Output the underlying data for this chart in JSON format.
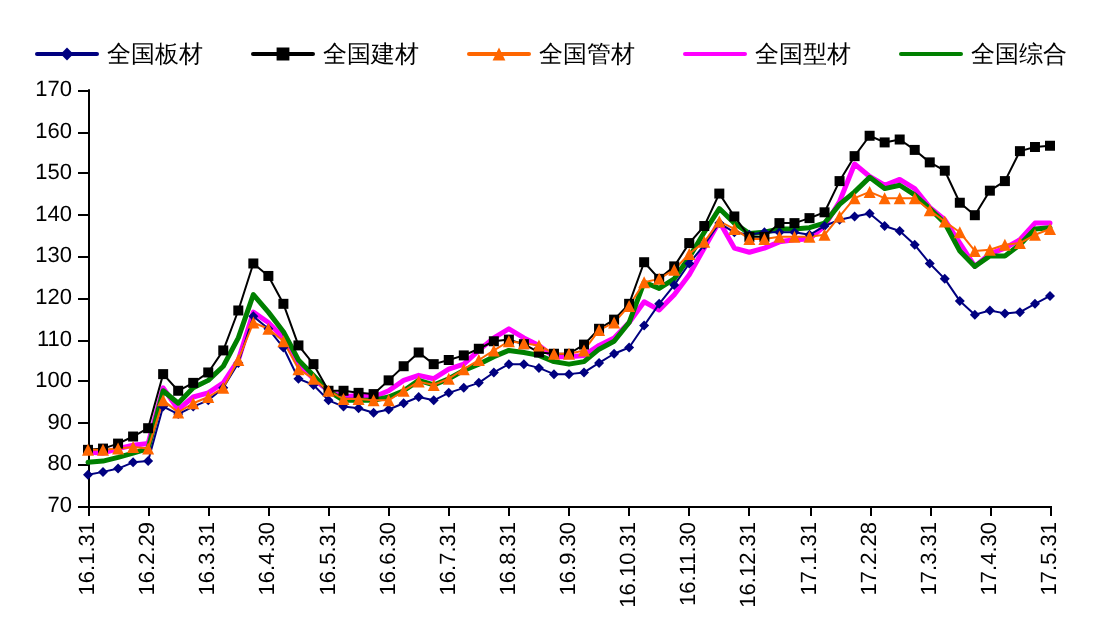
{
  "chart_data": {
    "type": "line",
    "categories": [
      "16.1.31",
      null,
      null,
      null,
      "16.2.29",
      null,
      null,
      null,
      "16.3.31",
      null,
      null,
      null,
      "16.4.30",
      null,
      null,
      null,
      "16.5.31",
      null,
      null,
      null,
      "16.6.30",
      null,
      null,
      null,
      "16.7.31",
      null,
      null,
      null,
      "16.8.31",
      null,
      null,
      null,
      "16.9.30",
      null,
      null,
      null,
      "16.10.31",
      null,
      null,
      null,
      "16.11.30",
      null,
      null,
      null,
      "16.12.31",
      null,
      null,
      null,
      "17.1.31",
      null,
      null,
      null,
      "17.2.28",
      null,
      null,
      null,
      "17.3.31",
      null,
      null,
      null,
      "17.4.30",
      null,
      null,
      null,
      "17.5.31"
    ],
    "series": [
      {
        "name": "全国板材",
        "color": "#000080",
        "marker": "diamond",
        "values": [
          77.5,
          78.2,
          79,
          80.5,
          80.8,
          93.9,
          92.1,
          93.9,
          95.4,
          98.4,
          104.4,
          115.6,
          112.6,
          108.1,
          100.6,
          99.1,
          95.4,
          93.9,
          93.5,
          92.4,
          93.2,
          94.7,
          96.2,
          95.4,
          97.2,
          98.4,
          99.6,
          102.1,
          104.1,
          104.1,
          103.2,
          101.7,
          101.7,
          102.1,
          104.4,
          106.6,
          108.1,
          113.4,
          118.6,
          123.1,
          128.3,
          132.8,
          138,
          135.8,
          135.2,
          135.8,
          135.8,
          135.8,
          135.2,
          137.3,
          138.8,
          139.6,
          140.3,
          137.3,
          136.1,
          132.8,
          128.3,
          124.6,
          119.3,
          116,
          117,
          116.3,
          116.6,
          118.6,
          120.5
        ]
      },
      {
        "name": "全国建材",
        "color": "#000000",
        "marker": "square",
        "values": [
          83.5,
          83.8,
          85,
          86.7,
          88.7,
          101.7,
          97.7,
          99.6,
          102.1,
          107.4,
          117,
          128.3,
          125.3,
          118.6,
          108.6,
          104.1,
          97.7,
          97.7,
          97.2,
          96.9,
          100.2,
          103.6,
          106.9,
          104.1,
          105.1,
          106.2,
          107.8,
          109.6,
          110,
          108.9,
          106.9,
          106.6,
          106.6,
          108.8,
          112.6,
          114.8,
          118.6,
          128.6,
          124.6,
          127.6,
          133.2,
          137.3,
          145.1,
          139.6,
          134.7,
          134.7,
          138,
          138,
          139.2,
          140.6,
          148.1,
          154.1,
          159,
          157.4,
          158.1,
          155.6,
          152.6,
          150.6,
          142.9,
          139.9,
          145.8,
          148.1,
          155.3,
          156.3,
          156.6
        ]
      },
      {
        "name": "全国管材",
        "color": "#ff6600",
        "marker": "triangle",
        "values": [
          83.5,
          83.5,
          83.8,
          84.2,
          83.8,
          95.4,
          92.5,
          94.7,
          96.2,
          98.4,
          105.1,
          114.1,
          112.6,
          109.6,
          102.9,
          100.6,
          97.7,
          95.7,
          95.7,
          95.4,
          95.4,
          97.7,
          99.9,
          99.1,
          100.6,
          102.9,
          105.1,
          107.4,
          109.6,
          109.1,
          108.6,
          106.6,
          106.6,
          107.4,
          112.3,
          114.1,
          118.1,
          123.8,
          124.6,
          126.8,
          130.6,
          133.5,
          138.4,
          136.6,
          134.2,
          134.2,
          134.7,
          134.7,
          134.7,
          135.2,
          139.6,
          144,
          145.5,
          144,
          144,
          144,
          141.1,
          138.4,
          135.8,
          131.3,
          131.6,
          132.8,
          133.2,
          135.2,
          136.6
        ]
      },
      {
        "name": "全国型材",
        "color": "#ff00ff",
        "marker": "none",
        "values": [
          83,
          82.7,
          83.8,
          84.6,
          85,
          98.4,
          93.2,
          96.2,
          97.2,
          99.6,
          105.1,
          116.6,
          114.1,
          110.4,
          104.1,
          100.6,
          97.7,
          96.2,
          96.6,
          96.2,
          97.7,
          100.2,
          101.4,
          100.6,
          102.9,
          104.1,
          107.4,
          110.4,
          112.6,
          110.4,
          108.6,
          105.9,
          105.9,
          106.2,
          108.6,
          110.4,
          114.1,
          119.1,
          117.1,
          120.8,
          125.6,
          132,
          138.4,
          132,
          131,
          132,
          133.5,
          134,
          134.2,
          137.3,
          143.2,
          152.2,
          149.2,
          147.1,
          148.5,
          146.3,
          141.8,
          138.8,
          133.2,
          127.6,
          130.6,
          132,
          134,
          138,
          138
        ]
      },
      {
        "name": "全国综合",
        "color": "#008000",
        "marker": "none",
        "values": [
          80.5,
          80.8,
          81.7,
          82.7,
          83.8,
          97.7,
          94.7,
          98.4,
          100.2,
          103.6,
          110.4,
          120.8,
          116.6,
          111.9,
          105.1,
          101.4,
          97.7,
          95.4,
          95.4,
          95.4,
          96.2,
          97.7,
          100.2,
          99.1,
          100.6,
          102.6,
          104.1,
          105.9,
          107.4,
          106.9,
          106.2,
          104.7,
          104.1,
          104.7,
          107.7,
          109.6,
          114.1,
          123.8,
          122.3,
          124.6,
          129.8,
          135.8,
          141.5,
          138,
          135.5,
          135.8,
          136.6,
          136.6,
          136.9,
          138,
          142.5,
          145.5,
          149,
          146.3,
          147.1,
          144.8,
          141.5,
          138,
          131.3,
          127.6,
          130.1,
          130.1,
          132.8,
          136.6,
          136.9
        ]
      }
    ],
    "ylim": [
      70,
      170
    ],
    "yticks": [
      70,
      80,
      90,
      100,
      110,
      120,
      130,
      140,
      150,
      160,
      170
    ],
    "grid": false,
    "legend": "top"
  }
}
